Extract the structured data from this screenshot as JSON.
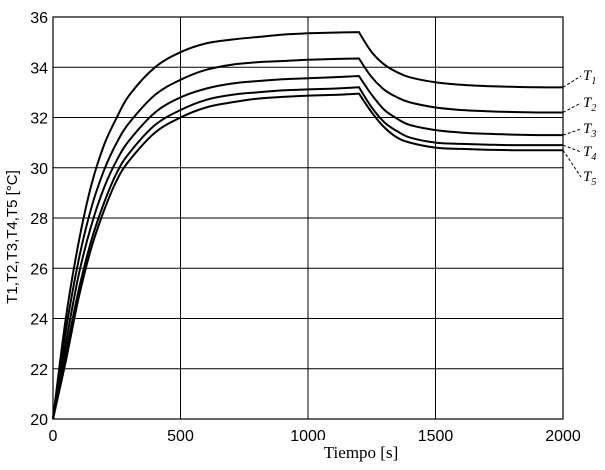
{
  "chart_data": {
    "type": "line",
    "xlabel": "Tiempo [s]",
    "ylabel": "T1,T2,T3,T4,T5 [°C]",
    "xlim": [
      0,
      2000
    ],
    "ylim": [
      20,
      36
    ],
    "xticks": [
      0,
      500,
      1000,
      1500,
      2000
    ],
    "yticks": [
      20,
      22,
      24,
      26,
      28,
      30,
      32,
      34,
      36
    ],
    "grid": true,
    "legend": "right, leader-line labels",
    "series": [
      {
        "name": "T1",
        "x": [
          0,
          50,
          100,
          150,
          200,
          250,
          300,
          400,
          500,
          600,
          700,
          800,
          900,
          1000,
          1100,
          1200,
          1250,
          1300,
          1350,
          1400,
          1500,
          1600,
          1700,
          1800,
          1900,
          2000
        ],
        "values": [
          20.0,
          24.0,
          27.0,
          29.3,
          30.9,
          32.0,
          32.9,
          34.0,
          34.6,
          34.95,
          35.1,
          35.2,
          35.3,
          35.35,
          35.38,
          35.4,
          34.6,
          34.1,
          33.8,
          33.6,
          33.4,
          33.3,
          33.25,
          33.22,
          33.2,
          33.2
        ]
      },
      {
        "name": "T2",
        "x": [
          0,
          50,
          100,
          150,
          200,
          250,
          300,
          400,
          500,
          600,
          700,
          800,
          900,
          1000,
          1100,
          1200,
          1250,
          1300,
          1350,
          1400,
          1500,
          1600,
          1700,
          1800,
          1900,
          2000
        ],
        "values": [
          20.0,
          23.5,
          26.3,
          28.4,
          29.9,
          31.0,
          31.8,
          32.9,
          33.5,
          33.9,
          34.1,
          34.2,
          34.25,
          34.3,
          34.33,
          34.35,
          33.6,
          33.1,
          32.8,
          32.6,
          32.4,
          32.3,
          32.25,
          32.22,
          32.2,
          32.2
        ]
      },
      {
        "name": "T3",
        "x": [
          0,
          50,
          100,
          150,
          200,
          250,
          300,
          400,
          500,
          600,
          700,
          800,
          900,
          1000,
          1100,
          1200,
          1250,
          1300,
          1350,
          1400,
          1500,
          1600,
          1700,
          1800,
          1900,
          2000
        ],
        "values": [
          20.0,
          23.0,
          25.7,
          27.7,
          29.2,
          30.3,
          31.1,
          32.2,
          32.8,
          33.15,
          33.35,
          33.45,
          33.52,
          33.56,
          33.6,
          33.65,
          32.9,
          32.3,
          31.95,
          31.7,
          31.5,
          31.4,
          31.35,
          31.32,
          31.3,
          31.3
        ]
      },
      {
        "name": "T4",
        "x": [
          0,
          50,
          100,
          150,
          200,
          250,
          300,
          400,
          500,
          600,
          700,
          800,
          900,
          1000,
          1100,
          1200,
          1250,
          1300,
          1350,
          1400,
          1500,
          1600,
          1700,
          1800,
          1900,
          2000
        ],
        "values": [
          20.0,
          22.6,
          25.1,
          27.1,
          28.6,
          29.8,
          30.6,
          31.7,
          32.3,
          32.7,
          32.9,
          33.0,
          33.08,
          33.12,
          33.15,
          33.2,
          32.4,
          31.8,
          31.45,
          31.2,
          31.0,
          30.95,
          30.92,
          30.9,
          30.9,
          30.9
        ]
      },
      {
        "name": "T5",
        "x": [
          0,
          50,
          100,
          150,
          200,
          250,
          300,
          400,
          500,
          600,
          700,
          800,
          900,
          1000,
          1100,
          1200,
          1250,
          1300,
          1350,
          1400,
          1500,
          1600,
          1700,
          1800,
          1900,
          2000
        ],
        "values": [
          20.0,
          22.3,
          24.8,
          26.8,
          28.3,
          29.5,
          30.3,
          31.4,
          32.0,
          32.4,
          32.6,
          32.75,
          32.82,
          32.87,
          32.9,
          32.95,
          32.2,
          31.6,
          31.2,
          31.0,
          30.8,
          30.75,
          30.72,
          30.7,
          30.7,
          30.7
        ]
      }
    ]
  },
  "labels": [
    {
      "main": "T",
      "sub": "1"
    },
    {
      "main": "T",
      "sub": "2"
    },
    {
      "main": "T",
      "sub": "3"
    },
    {
      "main": "T",
      "sub": "4"
    },
    {
      "main": "T",
      "sub": "5"
    }
  ]
}
